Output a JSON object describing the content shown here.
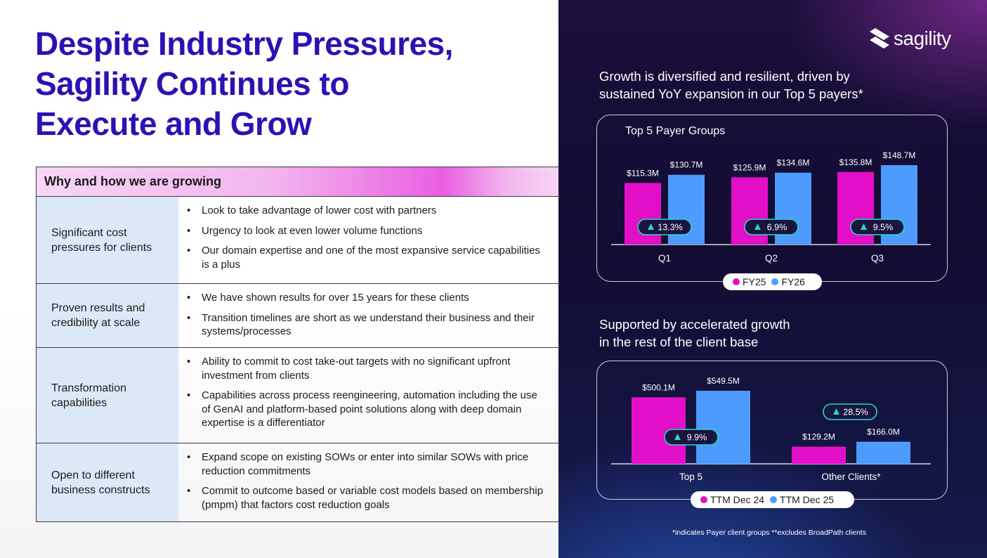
{
  "title_lines": [
    "Despite Industry Pressures,",
    "Sagility Continues to",
    "Execute and Grow"
  ],
  "table": {
    "header": "Why and how we are growing",
    "rows": [
      {
        "label": "Significant cost pressures for clients",
        "bullets": [
          "Look to take advantage of lower cost with partners",
          "Urgency to look at even lower volume functions",
          "Our domain expertise and one of the most expansive service capabilities is a plus"
        ]
      },
      {
        "label": "Proven results and credibility at scale",
        "bullets": [
          "We have shown results for over 15 years for these clients",
          "Transition timelines are short as we understand their business and their systems/processes"
        ]
      },
      {
        "label": "Transformation capabilities",
        "bullets": [
          "Ability to commit to cost take-out targets with no significant upfront investment from clients",
          "Capabilities across process reengineering, automation including the use of GenAI and platform-based point solutions along with deep domain expertise is a differentiator"
        ]
      },
      {
        "label": "Open to different business constructs",
        "bullets": [
          "Expand scope on existing SOWs or enter into similar SOWs with price reduction commitments",
          "Commit to outcome based or variable cost models based on membership (pmpm) that factors cost reduction goals"
        ]
      }
    ]
  },
  "logo": {
    "text": "sagility",
    "icon": "sagility-logo-icon"
  },
  "section1": {
    "subtitle_lines": [
      "Growth is diversified and resilient, driven by",
      "sustained YoY expansion in our Top 5 payers*"
    ]
  },
  "section2": {
    "subtitle_lines": [
      "Supported by accelerated growth",
      "in the rest of the client base"
    ]
  },
  "footnote": "*indicates Payer client groups  **excludes BroadPath clients",
  "colors": {
    "fy25": "#e30fc8",
    "fy26": "#4d9bff",
    "badge_border": "#27d9c4",
    "title": "#2a12b4"
  },
  "chart_data": [
    {
      "type": "bar",
      "title": "Top 5 Payer Groups",
      "categories": [
        "Q1",
        "Q2",
        "Q3"
      ],
      "series": [
        {
          "name": "FY25",
          "values": [
            115.3,
            125.9,
            135.8
          ],
          "labels": [
            "$115.3M",
            "$125.9M",
            "$135.8M"
          ]
        },
        {
          "name": "FY26",
          "values": [
            130.7,
            134.6,
            148.7
          ],
          "labels": [
            "$130.7M",
            "$134.6M",
            "$148.7M"
          ]
        }
      ],
      "growth": [
        "13.3%",
        "6.9%",
        "9.5%"
      ],
      "legend": [
        "FY25",
        "FY26"
      ],
      "ylim": [
        0,
        150
      ]
    },
    {
      "type": "bar",
      "title": "",
      "categories": [
        "Top 5",
        "Other Clients*"
      ],
      "series": [
        {
          "name": "TTM Dec 24",
          "values": [
            500.1,
            129.2
          ],
          "labels": [
            "$500.1M",
            "$129.2M"
          ]
        },
        {
          "name": "TTM Dec 25",
          "values": [
            549.5,
            166.0
          ],
          "labels": [
            "$549.5M",
            "$166.0M"
          ]
        }
      ],
      "growth": [
        "9.9%",
        "28.5%"
      ],
      "legend": [
        "TTM Dec 24",
        "TTM Dec 25"
      ],
      "ylim": [
        0,
        549.5
      ]
    }
  ]
}
